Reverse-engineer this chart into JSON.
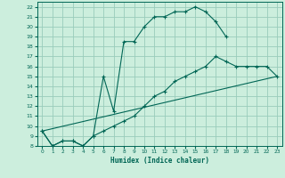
{
  "title": "",
  "xlabel": "Humidex (Indice chaleur)",
  "bg_color": "#cceedd",
  "grid_color": "#99ccbb",
  "line_color": "#006655",
  "xlim": [
    -0.5,
    23.5
  ],
  "ylim": [
    8,
    22.5
  ],
  "xticks": [
    0,
    1,
    2,
    3,
    4,
    5,
    6,
    7,
    8,
    9,
    10,
    11,
    12,
    13,
    14,
    15,
    16,
    17,
    18,
    19,
    20,
    21,
    22,
    23
  ],
  "yticks": [
    8,
    9,
    10,
    11,
    12,
    13,
    14,
    15,
    16,
    17,
    18,
    19,
    20,
    21,
    22
  ],
  "curve1_x": [
    0,
    1,
    2,
    3,
    4,
    5,
    6,
    7,
    8,
    9,
    10,
    11,
    12,
    13,
    14,
    15,
    16,
    17,
    18
  ],
  "curve1_y": [
    9.5,
    8.0,
    8.5,
    8.5,
    8.0,
    9.0,
    15.0,
    11.5,
    18.5,
    18.5,
    20.0,
    21.0,
    21.0,
    21.5,
    21.5,
    22.0,
    21.5,
    20.5,
    19.0
  ],
  "curve2_x": [
    0,
    1,
    2,
    3,
    4,
    5,
    6,
    7,
    8,
    9,
    10,
    11,
    12,
    13,
    14,
    15,
    16,
    17,
    18,
    19,
    20,
    21,
    22,
    23
  ],
  "curve2_y": [
    9.5,
    8.0,
    8.5,
    8.5,
    8.0,
    9.0,
    9.5,
    10.0,
    10.5,
    11.0,
    12.0,
    13.0,
    13.5,
    14.5,
    15.0,
    15.5,
    16.0,
    17.0,
    16.5,
    16.0,
    16.0,
    16.0,
    16.0,
    15.0
  ],
  "curve3_x": [
    0,
    23
  ],
  "curve3_y": [
    9.5,
    15.0
  ]
}
